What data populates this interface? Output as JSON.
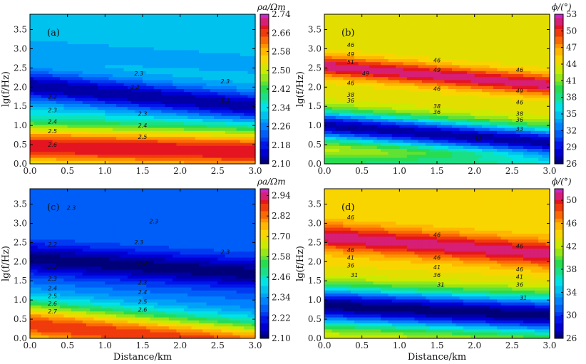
{
  "chart_data": [
    {
      "type": "heatmap",
      "panel_label": "(a)",
      "quantity": "apparent resistivity",
      "colorbar_title": "ρa/Ωm",
      "colorbar_ticks": [
        "2.74",
        "2.66",
        "2.58",
        "2.50",
        "2.42",
        "2.34",
        "2.26",
        "2.18",
        "2.10"
      ],
      "vmin": 2.1,
      "vmax": 2.74,
      "xlabel": "",
      "ylabel": "lg(f/Hz)",
      "xlim": [
        0,
        3.0
      ],
      "ylim": [
        0,
        3.9
      ],
      "xticks": [
        "0.0",
        "0.5",
        "1.0",
        "1.5",
        "2.0",
        "2.5",
        "3.0"
      ],
      "yticks": [
        "0.0",
        "0.5",
        "1.0",
        "1.5",
        "2.0",
        "2.5",
        "3.0",
        "3.5"
      ],
      "field": {
        "mode": "rho",
        "base": 2.32,
        "features": [
          {
            "x0": 0.2,
            "y0": 2.0,
            "x1": 2.9,
            "y1": 1.5,
            "amp": -0.2,
            "w": 0.38
          },
          {
            "x0": 0.0,
            "y0": 0.45,
            "x1": 3.2,
            "y1": 0.3,
            "amp": 0.38,
            "w": 0.55
          }
        ],
        "top_mod": {
          "y0": 3.0,
          "x0": 0.0,
          "x1": 3.0,
          "y1": 2.6,
          "amp": -0.03,
          "w": 0.35
        }
      },
      "contour_labels": [
        {
          "x": 1.45,
          "y": 2.3,
          "text": "2.3"
        },
        {
          "x": 1.4,
          "y": 1.95,
          "text": "2.2"
        },
        {
          "x": 2.6,
          "y": 2.1,
          "text": "2.3"
        },
        {
          "x": 2.6,
          "y": 1.6,
          "text": "2.2"
        },
        {
          "x": 0.3,
          "y": 1.7,
          "text": "2.2"
        },
        {
          "x": 0.3,
          "y": 1.35,
          "text": "2.3"
        },
        {
          "x": 1.5,
          "y": 1.25,
          "text": "2.3"
        },
        {
          "x": 0.3,
          "y": 1.05,
          "text": "2.4"
        },
        {
          "x": 1.5,
          "y": 0.95,
          "text": "2.4"
        },
        {
          "x": 0.3,
          "y": 0.8,
          "text": "2.5"
        },
        {
          "x": 1.5,
          "y": 0.65,
          "text": "2.5"
        },
        {
          "x": 0.3,
          "y": 0.45,
          "text": "2.6"
        }
      ]
    },
    {
      "type": "heatmap",
      "panel_label": "(b)",
      "quantity": "impedance phase",
      "colorbar_title": "ϕ/(°)",
      "colorbar_ticks": [
        "53",
        "50",
        "47",
        "44",
        "41",
        "38",
        "35",
        "32",
        "29",
        "26"
      ],
      "vmin": 26,
      "vmax": 53,
      "xlabel": "",
      "ylabel": "lg(f/Hz)",
      "xlim": [
        0,
        3.0
      ],
      "ylim": [
        0,
        3.9
      ],
      "xticks": [
        "0.0",
        "0.5",
        "1.0",
        "1.5",
        "2.0",
        "2.5",
        "3.0"
      ],
      "yticks": [
        "0.0",
        "0.5",
        "1.0",
        "1.5",
        "2.0",
        "2.5",
        "3.0",
        "3.5"
      ],
      "field": {
        "mode": "phase",
        "base": 44,
        "features": [
          {
            "x0": 0.0,
            "y0": 2.55,
            "x1": 3.0,
            "y1": 2.05,
            "amp": 8,
            "w": 0.28
          },
          {
            "x0": 0.0,
            "y0": 1.0,
            "x1": 3.0,
            "y1": 0.55,
            "amp": -17,
            "w": 0.38
          },
          {
            "x0": 0.0,
            "y0": 0.05,
            "x1": 3.0,
            "y1": 0.05,
            "amp": -5,
            "w": 0.2
          }
        ]
      },
      "contour_labels": [
        {
          "x": 0.35,
          "y": 3.05,
          "text": "46"
        },
        {
          "x": 0.35,
          "y": 2.8,
          "text": "49"
        },
        {
          "x": 0.35,
          "y": 2.6,
          "text": "51"
        },
        {
          "x": 0.55,
          "y": 2.3,
          "text": "49"
        },
        {
          "x": 0.35,
          "y": 2.05,
          "text": "46"
        },
        {
          "x": 0.35,
          "y": 1.75,
          "text": "38"
        },
        {
          "x": 0.35,
          "y": 1.6,
          "text": "36"
        },
        {
          "x": 0.35,
          "y": 0.9,
          "text": "32"
        },
        {
          "x": 1.5,
          "y": 2.65,
          "text": "46"
        },
        {
          "x": 1.5,
          "y": 2.4,
          "text": "49"
        },
        {
          "x": 1.5,
          "y": 1.9,
          "text": "46"
        },
        {
          "x": 1.5,
          "y": 1.45,
          "text": "38"
        },
        {
          "x": 1.5,
          "y": 1.3,
          "text": "36"
        },
        {
          "x": 2.05,
          "y": 0.6,
          "text": "32"
        },
        {
          "x": 2.6,
          "y": 2.4,
          "text": "46"
        },
        {
          "x": 2.6,
          "y": 1.85,
          "text": "49"
        },
        {
          "x": 2.6,
          "y": 1.55,
          "text": "46"
        },
        {
          "x": 2.6,
          "y": 1.25,
          "text": "38"
        },
        {
          "x": 2.6,
          "y": 1.1,
          "text": "36"
        },
        {
          "x": 2.6,
          "y": 0.85,
          "text": "33"
        }
      ]
    },
    {
      "type": "heatmap",
      "panel_label": "(c)",
      "quantity": "apparent resistivity",
      "colorbar_title": "ρa/Ωm",
      "colorbar_ticks": [
        "2.94",
        "2.82",
        "2.70",
        "2.58",
        "2.46",
        "2.34",
        "2.22",
        "2.10"
      ],
      "vmin": 2.1,
      "vmax": 2.98,
      "xlabel": "Distance/km",
      "ylabel": "lg(f/Hz)",
      "xlim": [
        0,
        3.0
      ],
      "ylim": [
        0,
        3.9
      ],
      "xticks": [
        "0.0",
        "0.5",
        "1.0",
        "1.5",
        "2.0",
        "2.5",
        "3.0"
      ],
      "yticks": [
        "0.0",
        "0.5",
        "1.0",
        "1.5",
        "2.0",
        "2.5",
        "3.0",
        "3.5"
      ],
      "field": {
        "mode": "rho",
        "base": 2.3,
        "features": [
          {
            "x0": 0.2,
            "y0": 2.05,
            "x1": 2.9,
            "y1": 1.7,
            "amp": -0.2,
            "w": 0.4
          },
          {
            "x0": 0.0,
            "y0": 0.35,
            "x1": 3.0,
            "y1": -0.2,
            "amp": 0.58,
            "w": 0.6
          }
        ],
        "top_mod": {
          "y0": 3.3,
          "x0": 0.0,
          "x1": 3.0,
          "y1": 2.8,
          "amp": -0.03,
          "w": 0.4
        }
      },
      "contour_labels": [
        {
          "x": 0.55,
          "y": 3.35,
          "text": "2.3"
        },
        {
          "x": 1.65,
          "y": 3.0,
          "text": "2.3"
        },
        {
          "x": 1.45,
          "y": 2.45,
          "text": "2.3"
        },
        {
          "x": 2.6,
          "y": 2.2,
          "text": "2.3"
        },
        {
          "x": 0.3,
          "y": 2.4,
          "text": "2.2"
        },
        {
          "x": 1.5,
          "y": 1.9,
          "text": "2.2"
        },
        {
          "x": 0.3,
          "y": 1.8,
          "text": "2.2"
        },
        {
          "x": 0.3,
          "y": 1.5,
          "text": "2.3"
        },
        {
          "x": 0.3,
          "y": 1.25,
          "text": "2.4"
        },
        {
          "x": 0.3,
          "y": 1.05,
          "text": "2.5"
        },
        {
          "x": 0.3,
          "y": 0.85,
          "text": "2.6"
        },
        {
          "x": 0.3,
          "y": 0.65,
          "text": "2.7"
        },
        {
          "x": 1.5,
          "y": 1.4,
          "text": "2.3"
        },
        {
          "x": 1.5,
          "y": 1.15,
          "text": "2.4"
        },
        {
          "x": 1.5,
          "y": 0.9,
          "text": "2.5"
        },
        {
          "x": 1.5,
          "y": 0.7,
          "text": "2.6"
        }
      ]
    },
    {
      "type": "heatmap",
      "panel_label": "(d)",
      "quantity": "impedance phase",
      "colorbar_title": "ϕ/(°)",
      "colorbar_ticks": [
        "50",
        "46",
        "42",
        "38",
        "34",
        "30",
        "26"
      ],
      "vmin": 26,
      "vmax": 52,
      "xlabel": "Distance/km",
      "ylabel": "lg(f/Hz)",
      "xlim": [
        0,
        3.0
      ],
      "ylim": [
        0,
        3.9
      ],
      "xticks": [
        "0.0",
        "0.5",
        "1.0",
        "1.5",
        "2.0",
        "2.5",
        "3.0"
      ],
      "yticks": [
        "0.0",
        "0.5",
        "1.0",
        "1.5",
        "2.0",
        "2.5",
        "3.0",
        "3.5"
      ],
      "field": {
        "mode": "phase",
        "base": 44,
        "features": [
          {
            "x0": 0.0,
            "y0": 2.65,
            "x1": 3.0,
            "y1": 2.2,
            "amp": 7,
            "w": 0.35
          },
          {
            "x0": 0.0,
            "y0": 0.85,
            "x1": 3.0,
            "y1": 0.6,
            "amp": -18,
            "w": 0.5
          }
        ]
      },
      "contour_labels": [
        {
          "x": 0.35,
          "y": 3.1,
          "text": "46"
        },
        {
          "x": 0.35,
          "y": 2.25,
          "text": "46"
        },
        {
          "x": 0.35,
          "y": 2.05,
          "text": "41"
        },
        {
          "x": 0.35,
          "y": 1.85,
          "text": "36"
        },
        {
          "x": 0.4,
          "y": 1.6,
          "text": "31"
        },
        {
          "x": 1.5,
          "y": 2.65,
          "text": "46"
        },
        {
          "x": 1.5,
          "y": 2.05,
          "text": "46"
        },
        {
          "x": 1.5,
          "y": 1.8,
          "text": "41"
        },
        {
          "x": 1.5,
          "y": 1.6,
          "text": "36"
        },
        {
          "x": 1.55,
          "y": 1.35,
          "text": "31"
        },
        {
          "x": 2.6,
          "y": 2.35,
          "text": "46"
        },
        {
          "x": 2.6,
          "y": 1.75,
          "text": "46"
        },
        {
          "x": 2.6,
          "y": 1.55,
          "text": "41"
        },
        {
          "x": 2.6,
          "y": 1.35,
          "text": "36"
        },
        {
          "x": 2.65,
          "y": 1.0,
          "text": "31"
        }
      ]
    }
  ]
}
